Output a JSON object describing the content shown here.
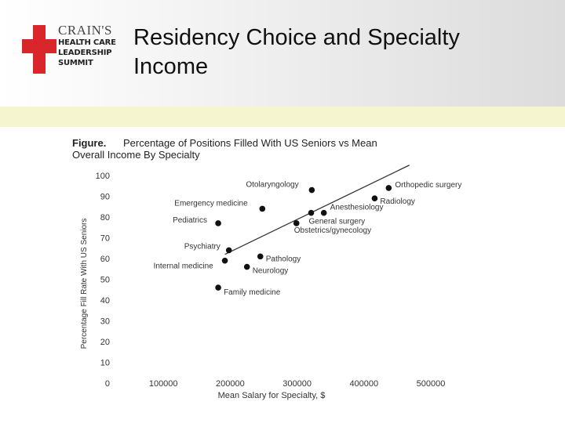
{
  "logo": {
    "brand": "CRAIN'S",
    "lines": [
      "HEALTH CARE",
      "LEADERSHIP",
      "SUMMIT"
    ]
  },
  "slide": {
    "title_line1": "Residency Choice and Specialty",
    "title_line2": "Income"
  },
  "chart_data": {
    "type": "scatter",
    "title_prefix": "Figure.",
    "title_line1": "Percentage of Positions Filled With US Seniors vs Mean",
    "title_line2": "Overall Income By Specialty",
    "xlabel": "Mean Salary for Specialty, $",
    "ylabel": "Percentage Fill Rate With US Seniors",
    "xlim": [
      0,
      500000
    ],
    "ylim": [
      0,
      100
    ],
    "x_ticks": [
      100000,
      200000,
      300000,
      400000,
      500000
    ],
    "x_tick_labels": [
      "100000",
      "200000",
      "300000",
      "400000",
      "500000"
    ],
    "y_ticks": [
      0,
      10,
      20,
      30,
      40,
      50,
      60,
      70,
      80,
      90,
      100
    ],
    "y_tick_labels": [
      "0",
      "10",
      "20",
      "30",
      "40",
      "50",
      "60",
      "70",
      "80",
      "90",
      "100"
    ],
    "grid": false,
    "points": [
      {
        "label": "Otolaryngology",
        "x": 322000,
        "y": 93
      },
      {
        "label": "Orthopedic surgery",
        "x": 437000,
        "y": 94
      },
      {
        "label": "Radiology",
        "x": 416000,
        "y": 89
      },
      {
        "label": "Emergency medicine",
        "x": 248000,
        "y": 84
      },
      {
        "label": "Anesthesiology",
        "x": 340000,
        "y": 82
      },
      {
        "label": "General surgery",
        "x": 321000,
        "y": 82
      },
      {
        "label": "Obstetrics/gynecology",
        "x": 299000,
        "y": 77
      },
      {
        "label": "Pediatrics",
        "x": 182000,
        "y": 77
      },
      {
        "label": "Psychiatry",
        "x": 198000,
        "y": 64
      },
      {
        "label": "Pathology",
        "x": 245000,
        "y": 61
      },
      {
        "label": "Internal medicine",
        "x": 192000,
        "y": 59
      },
      {
        "label": "Neurology",
        "x": 225000,
        "y": 56
      },
      {
        "label": "Family medicine",
        "x": 182000,
        "y": 46
      }
    ],
    "trendline": {
      "x": [
        192000,
        468000
      ],
      "y": [
        62,
        105
      ]
    }
  }
}
